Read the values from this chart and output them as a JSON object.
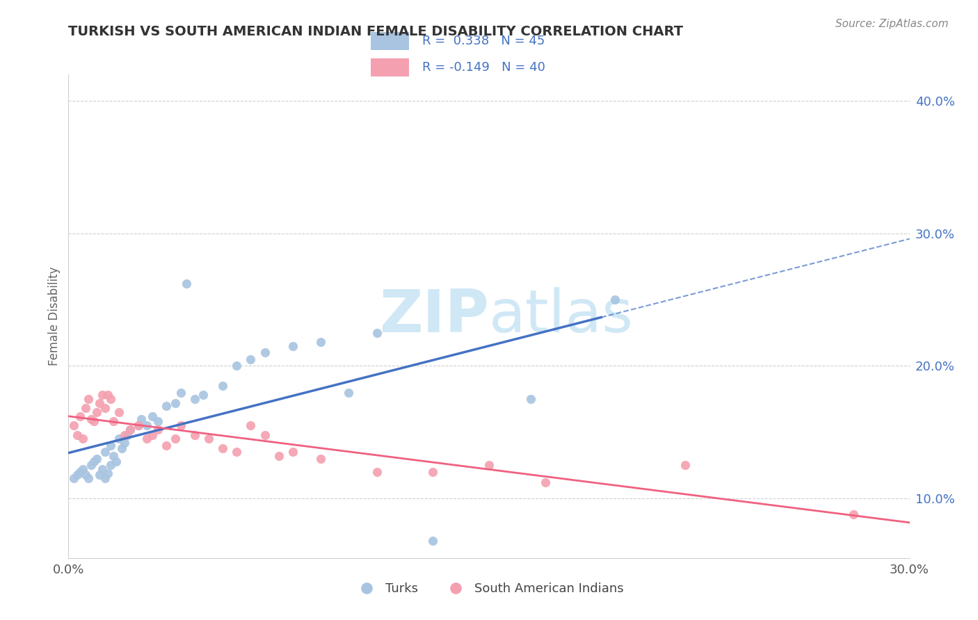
{
  "title": "TURKISH VS SOUTH AMERICAN INDIAN FEMALE DISABILITY CORRELATION CHART",
  "source": "Source: ZipAtlas.com",
  "ylabel": "Female Disability",
  "xlim": [
    0.0,
    0.3
  ],
  "ylim": [
    0.055,
    0.42
  ],
  "turks_R": 0.338,
  "turks_N": 45,
  "sai_R": -0.149,
  "sai_N": 40,
  "turks_color": "#a8c4e0",
  "sai_color": "#f4a0b0",
  "turks_line_color": "#4472c4",
  "sai_line_color": "#f06080",
  "watermark_color": "#d0e8f5",
  "grid_color": "#d0d0d0",
  "right_axis_color": "#4472c4",
  "title_color": "#333333",
  "source_color": "#888888",
  "turks_scatter_x": [
    0.002,
    0.003,
    0.004,
    0.005,
    0.006,
    0.007,
    0.008,
    0.009,
    0.01,
    0.011,
    0.012,
    0.013,
    0.013,
    0.014,
    0.015,
    0.015,
    0.016,
    0.017,
    0.018,
    0.019,
    0.02,
    0.021,
    0.022,
    0.025,
    0.026,
    0.028,
    0.03,
    0.032,
    0.035,
    0.038,
    0.04,
    0.042,
    0.045,
    0.048,
    0.055,
    0.06,
    0.065,
    0.07,
    0.08,
    0.09,
    0.1,
    0.11,
    0.13,
    0.165,
    0.195
  ],
  "turks_scatter_y": [
    0.115,
    0.118,
    0.12,
    0.122,
    0.118,
    0.115,
    0.125,
    0.128,
    0.13,
    0.118,
    0.122,
    0.115,
    0.135,
    0.119,
    0.125,
    0.14,
    0.132,
    0.128,
    0.145,
    0.138,
    0.142,
    0.148,
    0.152,
    0.155,
    0.16,
    0.155,
    0.162,
    0.158,
    0.17,
    0.172,
    0.18,
    0.262,
    0.175,
    0.178,
    0.185,
    0.2,
    0.205,
    0.21,
    0.215,
    0.218,
    0.18,
    0.225,
    0.068,
    0.175,
    0.25
  ],
  "sai_scatter_x": [
    0.002,
    0.003,
    0.004,
    0.005,
    0.006,
    0.007,
    0.008,
    0.009,
    0.01,
    0.011,
    0.012,
    0.013,
    0.014,
    0.015,
    0.016,
    0.018,
    0.02,
    0.022,
    0.025,
    0.028,
    0.03,
    0.032,
    0.035,
    0.038,
    0.04,
    0.045,
    0.05,
    0.055,
    0.06,
    0.065,
    0.07,
    0.075,
    0.08,
    0.09,
    0.11,
    0.13,
    0.15,
    0.17,
    0.22,
    0.28
  ],
  "sai_scatter_y": [
    0.155,
    0.148,
    0.162,
    0.145,
    0.168,
    0.175,
    0.16,
    0.158,
    0.165,
    0.172,
    0.178,
    0.168,
    0.178,
    0.175,
    0.158,
    0.165,
    0.148,
    0.152,
    0.155,
    0.145,
    0.148,
    0.152,
    0.14,
    0.145,
    0.155,
    0.148,
    0.145,
    0.138,
    0.135,
    0.155,
    0.148,
    0.132,
    0.135,
    0.13,
    0.12,
    0.12,
    0.125,
    0.112,
    0.125,
    0.088
  ],
  "xticks": [
    0.0,
    0.05,
    0.1,
    0.15,
    0.2,
    0.25,
    0.3
  ],
  "xtick_labels": [
    "0.0%",
    "",
    "",
    "",
    "",
    "",
    "30.0%"
  ],
  "yticks_right": [
    0.1,
    0.2,
    0.3,
    0.4
  ],
  "ytick_labels_right": [
    "10.0%",
    "20.0%",
    "30.0%",
    "40.0%"
  ],
  "blue_line_x_end": 0.19,
  "dashed_line_x_start": 0.19
}
